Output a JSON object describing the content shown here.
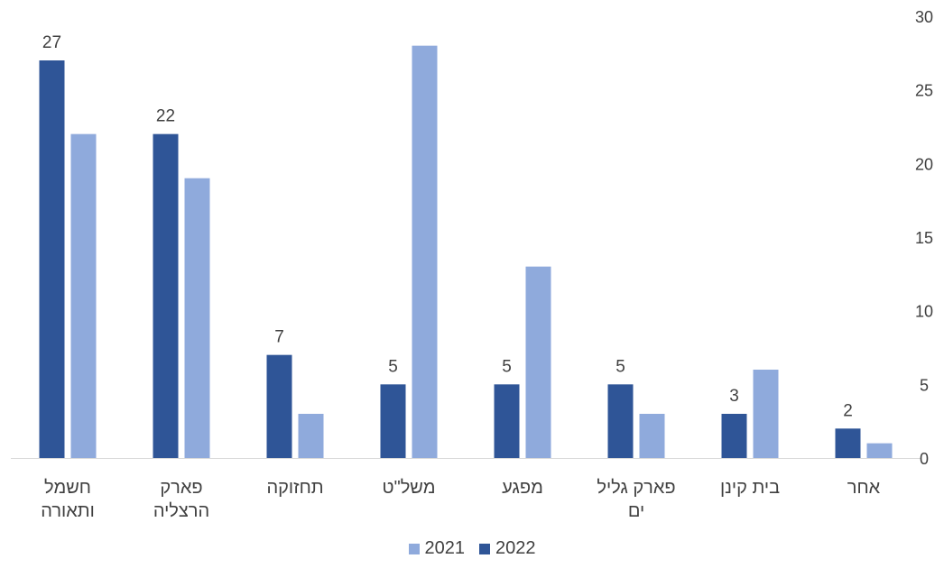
{
  "chart_data": {
    "type": "bar",
    "categories": [
      [
        "חשמל",
        "ותאורה"
      ],
      [
        "פארק",
        "הרצליה"
      ],
      [
        "תחזוקה"
      ],
      [
        "משל\"ט"
      ],
      [
        "מפגע"
      ],
      [
        "פארק גליל",
        "ים"
      ],
      [
        "בית קינן"
      ],
      [
        "אחר"
      ]
    ],
    "series": [
      {
        "name": "2022",
        "values": [
          27,
          22,
          7,
          5,
          5,
          5,
          3,
          2
        ],
        "color": "#2f5597",
        "show_labels": true
      },
      {
        "name": "2021",
        "values": [
          22,
          19,
          3,
          28,
          13,
          3,
          6,
          1
        ],
        "color": "#8faadc",
        "show_labels": false
      }
    ],
    "yticks": [
      "0",
      "5",
      "10",
      "15",
      "20",
      "25",
      "30"
    ],
    "ylim": [
      0,
      30
    ],
    "y_axis_side": "right",
    "grid": false,
    "legend_position": "bottom-center",
    "legend": [
      {
        "name": "2021",
        "color": "#8faadc"
      },
      {
        "name": "2022",
        "color": "#2f5597"
      }
    ],
    "axis_color": "#d9d9d9",
    "text_color": "#404040"
  }
}
